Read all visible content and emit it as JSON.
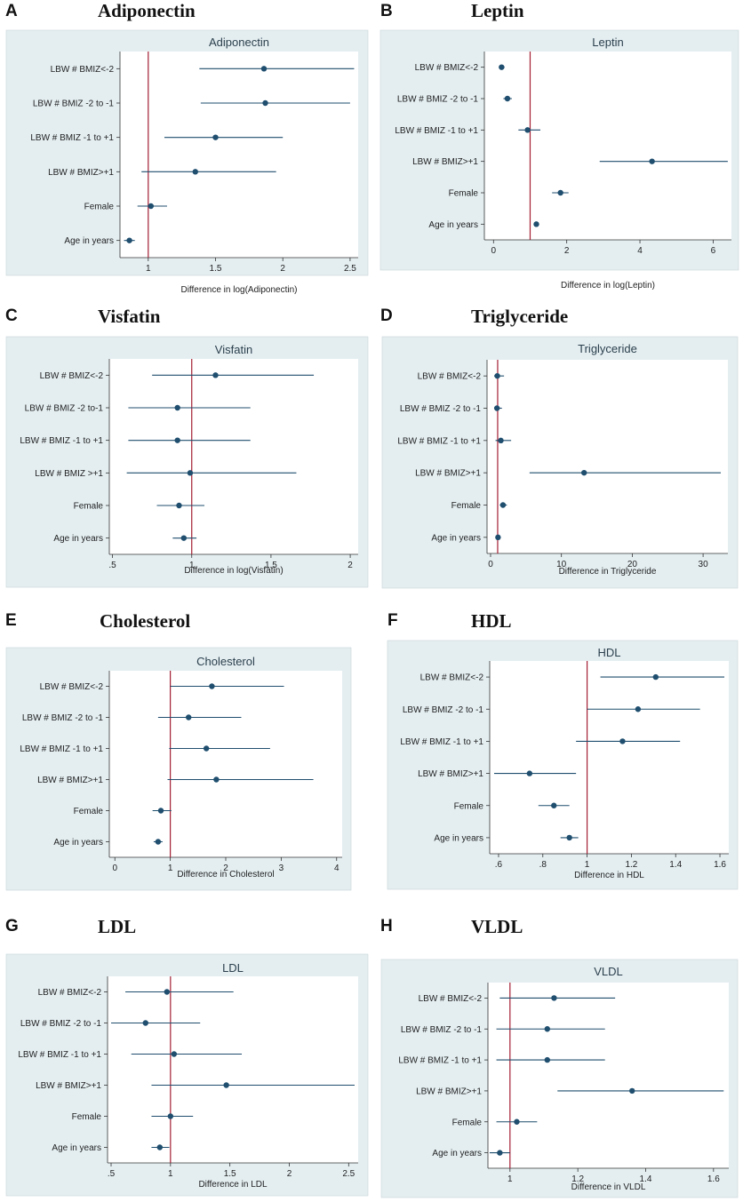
{
  "colors": {
    "panel_bg": "#e4eef1",
    "plot_bg": "#ffffff",
    "line": "#1f4e6e",
    "ref": "#a31f34",
    "text": "#222222"
  },
  "panels": [
    {
      "letter": "A",
      "title": "Adiponectin"
    },
    {
      "letter": "B",
      "title": "Leptin"
    },
    {
      "letter": "C",
      "title": "Visfatin"
    },
    {
      "letter": "D",
      "title": "Triglyceride"
    },
    {
      "letter": "E",
      "title": "Cholesterol"
    },
    {
      "letter": "F",
      "title": "HDL"
    },
    {
      "letter": "G",
      "title": "LDL"
    },
    {
      "letter": "H",
      "title": "VLDL"
    }
  ],
  "chart_data": [
    {
      "type": "forest",
      "title": "Adiponectin",
      "xlabel": "Difference in log(Adiponectin)",
      "xlim": [
        0.79,
        2.56
      ],
      "xticks": [
        1,
        1.5,
        2,
        2.5
      ],
      "xtick_labels": [
        "1",
        "1.5",
        "2",
        "2.5"
      ],
      "ref_line": 1,
      "categories": [
        "LBW # BMIZ<-2",
        "LBW # BMIZ -2 to -1",
        "LBW # BMIZ -1 to +1",
        "LBW # BMIZ>+1",
        "Female",
        "Age in years"
      ],
      "estimates": [
        1.86,
        1.87,
        1.5,
        1.35,
        1.02,
        0.86
      ],
      "lower": [
        1.38,
        1.39,
        1.12,
        0.95,
        0.92,
        0.82
      ],
      "upper": [
        2.53,
        2.5,
        2.0,
        1.95,
        1.14,
        0.9
      ]
    },
    {
      "type": "forest",
      "title": "Leptin",
      "xlabel": "Difference in log(Leptin)",
      "xlim": [
        -0.25,
        6.5
      ],
      "xticks": [
        0,
        2,
        4,
        6
      ],
      "xtick_labels": [
        "0",
        "2",
        "4",
        "6"
      ],
      "ref_line": 1,
      "categories": [
        "LBW # BMIZ<-2",
        "LBW # BMIZ -2 to -1",
        "LBW # BMIZ -1 to +1",
        "LBW # BMIZ>+1",
        "Female",
        "Age in years"
      ],
      "estimates": [
        0.22,
        0.38,
        0.93,
        4.33,
        1.83,
        1.17
      ],
      "lower": [
        0.15,
        0.27,
        0.68,
        2.9,
        1.6,
        1.1
      ],
      "upper": [
        0.3,
        0.5,
        1.28,
        6.4,
        2.05,
        1.24
      ]
    },
    {
      "type": "forest",
      "title": "Visfatin",
      "xlabel": "Difference in log(Visfatin)",
      "xlim": [
        0.48,
        2.05
      ],
      "xticks": [
        0.5,
        1,
        1.5,
        2
      ],
      "xtick_labels": [
        ".5",
        "1",
        "1.5",
        "2"
      ],
      "ref_line": 1,
      "categories": [
        "LBW # BMIZ<-2",
        "LBW # BMIZ -2 to-1",
        "LBW # BMIZ -1 to +1",
        "LBW # BMIZ >+1",
        "Female",
        "Age in years"
      ],
      "estimates": [
        1.15,
        0.91,
        0.91,
        0.99,
        0.92,
        0.95
      ],
      "lower": [
        0.75,
        0.6,
        0.6,
        0.59,
        0.78,
        0.88
      ],
      "upper": [
        1.77,
        1.37,
        1.37,
        1.66,
        1.08,
        1.03
      ]
    },
    {
      "type": "forest",
      "title": "Triglyceride",
      "xlabel": "Difference in Triglyceride",
      "xlim": [
        -0.5,
        33.5
      ],
      "xticks": [
        0,
        10,
        20,
        30
      ],
      "xtick_labels": [
        "0",
        "10",
        "20",
        "30"
      ],
      "ref_line": 1,
      "categories": [
        "LBW # BMIZ<-2",
        "LBW # BMIZ -2 to -1",
        "LBW # BMIZ -1 to +1",
        "LBW # BMIZ>+1",
        "Female",
        "Age in years"
      ],
      "estimates": [
        0.95,
        0.9,
        1.45,
        13.2,
        1.75,
        1.05
      ],
      "lower": [
        0.5,
        0.5,
        0.7,
        5.5,
        1.3,
        0.9
      ],
      "upper": [
        1.9,
        1.6,
        2.9,
        32.5,
        2.3,
        1.2
      ]
    },
    {
      "type": "forest",
      "title": "Cholesterol",
      "xlabel": "Difference in Cholesterol",
      "xlim": [
        -0.1,
        4.1
      ],
      "xticks": [
        0,
        1,
        2,
        3,
        4
      ],
      "xtick_labels": [
        "0",
        "1",
        "2",
        "3",
        "4"
      ],
      "ref_line": 1,
      "categories": [
        "LBW # BMIZ<-2",
        "LBW # BMIZ -2 to -1",
        "LBW # BMIZ -1 to +1",
        "LBW # BMIZ>+1",
        "Female",
        "Age in years"
      ],
      "estimates": [
        1.75,
        1.33,
        1.65,
        1.83,
        0.83,
        0.78
      ],
      "lower": [
        1.0,
        0.78,
        0.98,
        0.95,
        0.68,
        0.7
      ],
      "upper": [
        3.05,
        2.28,
        2.8,
        3.58,
        1.02,
        0.86
      ]
    },
    {
      "type": "forest",
      "title": "HDL",
      "xlabel": "Difference in HDL",
      "xlim": [
        0.56,
        1.64
      ],
      "xticks": [
        0.6,
        0.8,
        1,
        1.2,
        1.4,
        1.6
      ],
      "xtick_labels": [
        ".6",
        ".8",
        "1",
        "1.2",
        "1.4",
        "1.6"
      ],
      "ref_line": 1,
      "categories": [
        "LBW # BMIZ<-2",
        "LBW # BMIZ -2 to -1",
        "LBW # BMIZ -1 to +1",
        "LBW # BMIZ>+1",
        "Female",
        "Age in years"
      ],
      "estimates": [
        1.31,
        1.23,
        1.16,
        0.74,
        0.85,
        0.92
      ],
      "lower": [
        1.06,
        1.0,
        0.95,
        0.58,
        0.78,
        0.88
      ],
      "upper": [
        1.62,
        1.51,
        1.42,
        0.95,
        0.92,
        0.96
      ]
    },
    {
      "type": "forest",
      "title": "LDL",
      "xlabel": "Difference in LDL",
      "xlim": [
        0.47,
        2.58
      ],
      "xticks": [
        0.5,
        1,
        1.5,
        2,
        2.5
      ],
      "xtick_labels": [
        ".5",
        "1",
        "1.5",
        "2",
        "2.5"
      ],
      "ref_line": 1,
      "categories": [
        "LBW # BMIZ<-2",
        "LBW # BMIZ -2 to -1",
        "LBW # BMIZ -1 to +1",
        "LBW # BMIZ>+1",
        "Female",
        "Age in years"
      ],
      "estimates": [
        0.97,
        0.79,
        1.03,
        1.47,
        1.0,
        0.91
      ],
      "lower": [
        0.62,
        0.5,
        0.67,
        0.84,
        0.84,
        0.84
      ],
      "upper": [
        1.53,
        1.25,
        1.6,
        2.55,
        1.19,
        0.99
      ]
    },
    {
      "type": "forest",
      "title": "VLDL",
      "xlabel": "Difference in VLDL",
      "xlim": [
        0.935,
        1.645
      ],
      "xticks": [
        1,
        1.2,
        1.4,
        1.6
      ],
      "xtick_labels": [
        "1",
        "1.2",
        "1.4",
        "1.6"
      ],
      "ref_line": 1,
      "categories": [
        "LBW # BMIZ<-2",
        "LBW # BMIZ -2 to -1",
        "LBW # BMIZ -1 to +1",
        "LBW # BMIZ>+1",
        "Female",
        "Age in years"
      ],
      "estimates": [
        1.13,
        1.11,
        1.11,
        1.36,
        1.02,
        0.97
      ],
      "lower": [
        0.97,
        0.96,
        0.96,
        1.14,
        0.96,
        0.94
      ],
      "upper": [
        1.31,
        1.28,
        1.28,
        1.63,
        1.08,
        1.0
      ]
    }
  ]
}
